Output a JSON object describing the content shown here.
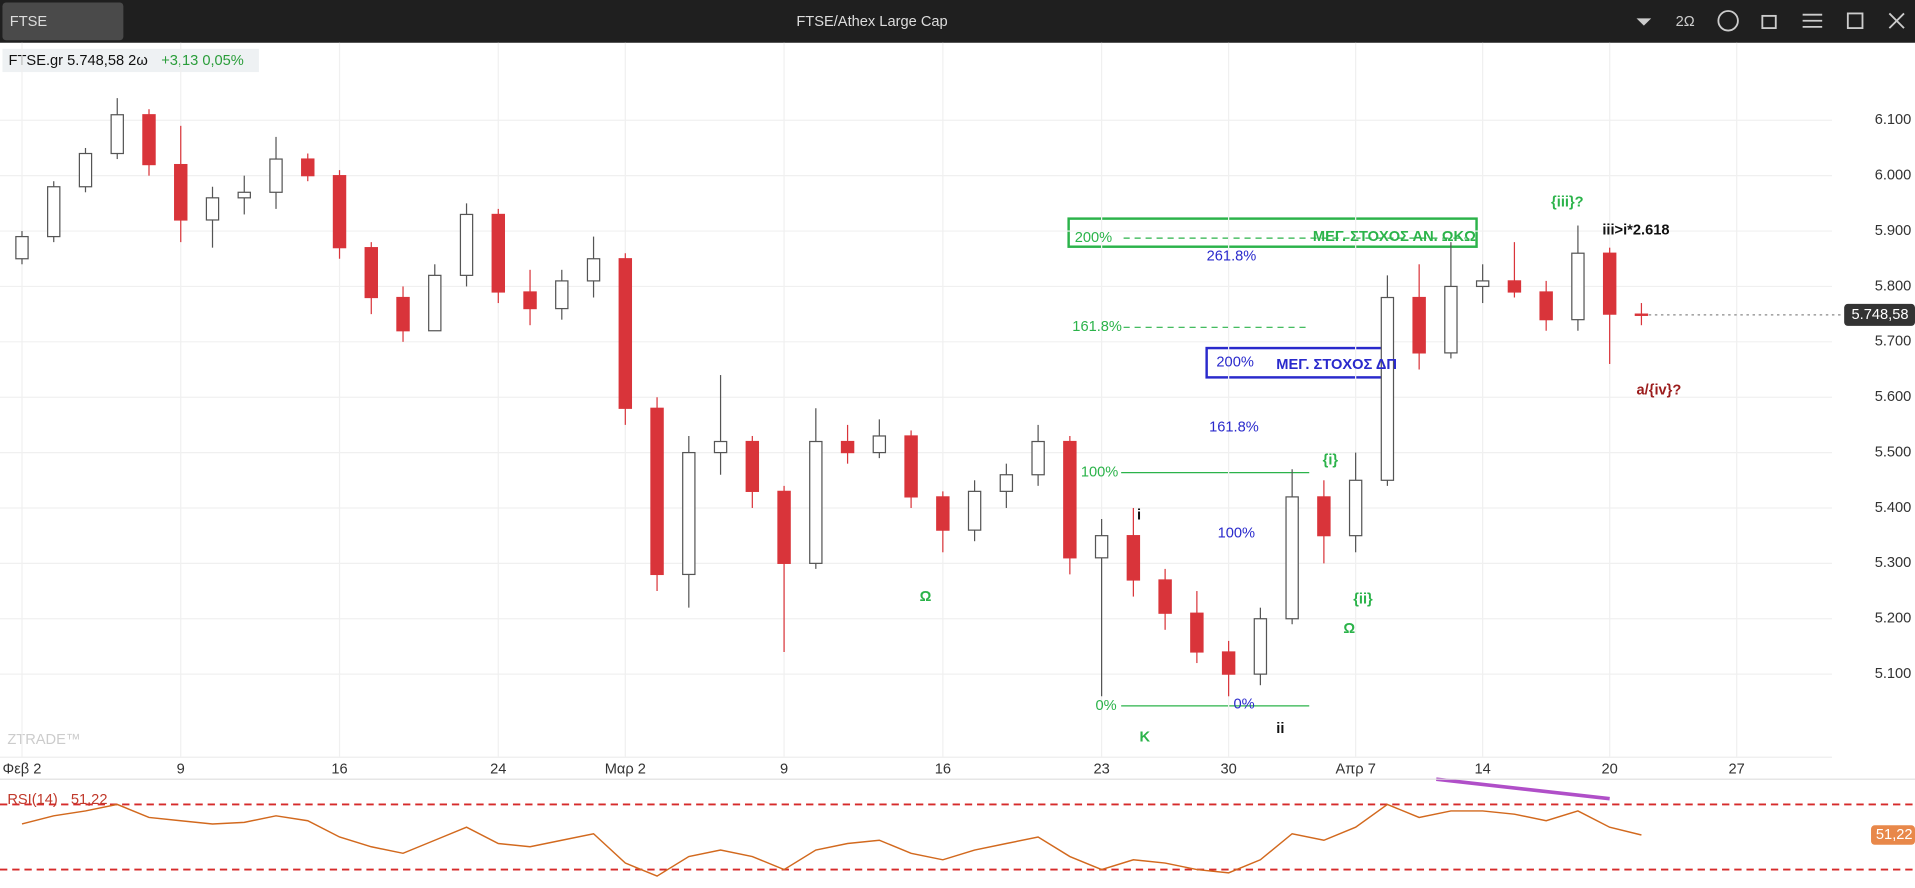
{
  "chart_data": {
    "type": "candlestick",
    "symbol": "FTSE",
    "title": "FTSE/Athex Large Cap",
    "interval": "2Ω",
    "info": "FTSE.gr 5.748,58 2ω",
    "change": "+3,13 0,05%",
    "watermark": "ZTRADE™",
    "categories": [
      "Φεβ 2",
      null,
      null,
      null,
      null,
      "9",
      null,
      null,
      null,
      null,
      "16",
      null,
      null,
      null,
      null,
      "24",
      null,
      null,
      null,
      "Μαρ 2",
      null,
      null,
      null,
      null,
      "9",
      null,
      null,
      null,
      null,
      "16",
      null,
      null,
      null,
      null,
      "23",
      null,
      null,
      null,
      "30",
      null,
      null,
      null,
      "Απρ 7",
      null,
      null,
      null,
      "14",
      null,
      null,
      null,
      "20",
      null,
      null,
      null,
      "27"
    ],
    "open": [
      5850,
      5890,
      5980,
      6040,
      6110,
      6020,
      5920,
      5960,
      5970,
      6030,
      6000,
      5870,
      5780,
      5720,
      5820,
      5930,
      5790,
      5760,
      5810,
      5850,
      5580,
      5280,
      5500,
      5520,
      5430,
      5300,
      5520,
      5500,
      5530,
      5420,
      5360,
      5430,
      5460,
      5520,
      5310,
      5350,
      5270,
      5210,
      5140,
      5100,
      5200,
      5420,
      5350,
      5450,
      5780,
      5680,
      5800,
      5810,
      5790,
      5740,
      5860,
      5750,
      null,
      null,
      null
    ],
    "high": [
      5900,
      5990,
      6050,
      6140,
      6120,
      6090,
      5980,
      6000,
      6070,
      6040,
      6010,
      5880,
      5800,
      5840,
      5950,
      5940,
      5830,
      5830,
      5890,
      5860,
      5600,
      5530,
      5640,
      5530,
      5440,
      5580,
      5550,
      5560,
      5540,
      5430,
      5450,
      5480,
      5550,
      5530,
      5380,
      5400,
      5290,
      5250,
      5160,
      5220,
      5470,
      5450,
      5500,
      5820,
      5840,
      5880,
      5840,
      5880,
      5810,
      5910,
      5870,
      5770,
      null,
      null,
      null
    ],
    "low": [
      5840,
      5880,
      5970,
      6030,
      6000,
      5880,
      5870,
      5930,
      5940,
      5990,
      5850,
      5750,
      5700,
      5720,
      5800,
      5770,
      5730,
      5740,
      5780,
      5550,
      5250,
      5220,
      5460,
      5400,
      5140,
      5290,
      5480,
      5490,
      5400,
      5320,
      5340,
      5400,
      5440,
      5280,
      5060,
      5240,
      5180,
      5120,
      5060,
      5080,
      5190,
      5300,
      5320,
      5440,
      5650,
      5670,
      5770,
      5780,
      5720,
      5720,
      5660,
      5730,
      null,
      null,
      null
    ],
    "close": [
      5890,
      5980,
      6040,
      6110,
      6020,
      5920,
      5960,
      5970,
      6030,
      6000,
      5870,
      5780,
      5720,
      5820,
      5930,
      5790,
      5760,
      5810,
      5850,
      5580,
      5280,
      5500,
      5520,
      5430,
      5300,
      5520,
      5500,
      5530,
      5420,
      5360,
      5430,
      5460,
      5520,
      5310,
      5350,
      5270,
      5210,
      5140,
      5100,
      5200,
      5420,
      5350,
      5450,
      5780,
      5680,
      5800,
      5810,
      5790,
      5740,
      5860,
      5750,
      5748.58,
      null,
      null,
      null
    ],
    "last_value_label": "5.748,58",
    "up_color": "#ffffff",
    "down_color": "#d9343a",
    "ylim": [
      4950,
      6240
    ],
    "yticks": [
      {
        "value": 5100,
        "label": "5.100"
      },
      {
        "value": 5200,
        "label": "5.200"
      },
      {
        "value": 5300,
        "label": "5.300"
      },
      {
        "value": 5400,
        "label": "5.400"
      },
      {
        "value": 5500,
        "label": "5.500"
      },
      {
        "value": 5600,
        "label": "5.600"
      },
      {
        "value": 5700,
        "label": "5.700"
      },
      {
        "value": 5800,
        "label": "5.800"
      },
      {
        "value": 5900,
        "label": "5.900"
      },
      {
        "value": 6000,
        "label": "6.000"
      },
      {
        "value": 6100,
        "label": "6.100"
      }
    ],
    "grid": true,
    "annotations": [
      "200%",
      "ΜΕΓ. ΣΤΟΧΟΣ ΑΝ. ΩΚΩ",
      "261.8%",
      "161.8%",
      "200%",
      "ΜΕΓ. ΣΤΟΧΟΣ ΔΠ",
      "161.8%",
      "100%",
      "100%",
      "0%",
      "0%",
      "i",
      "ii",
      "K",
      "{i}",
      "{ii}",
      "Ω",
      "Ω",
      "{iii}?",
      "iii>i*2.618",
      "a/{iv}?"
    ],
    "rsi": {
      "name": "RSI(14)",
      "color": "#d2691e",
      "values": [
        58,
        63,
        66,
        70,
        62,
        60,
        58,
        59,
        63,
        60,
        50,
        44,
        40,
        48,
        56,
        46,
        44,
        48,
        52,
        34,
        26,
        38,
        42,
        38,
        30,
        42,
        46,
        48,
        40,
        36,
        42,
        46,
        50,
        38,
        30,
        36,
        34,
        30,
        28,
        36,
        52,
        48,
        56,
        70,
        62,
        66,
        66,
        64,
        60,
        66,
        56,
        51.22,
        null,
        null,
        null
      ],
      "value_label": "51,22",
      "ylim": [
        24,
        84
      ],
      "levels": [
        70,
        30
      ]
    }
  }
}
